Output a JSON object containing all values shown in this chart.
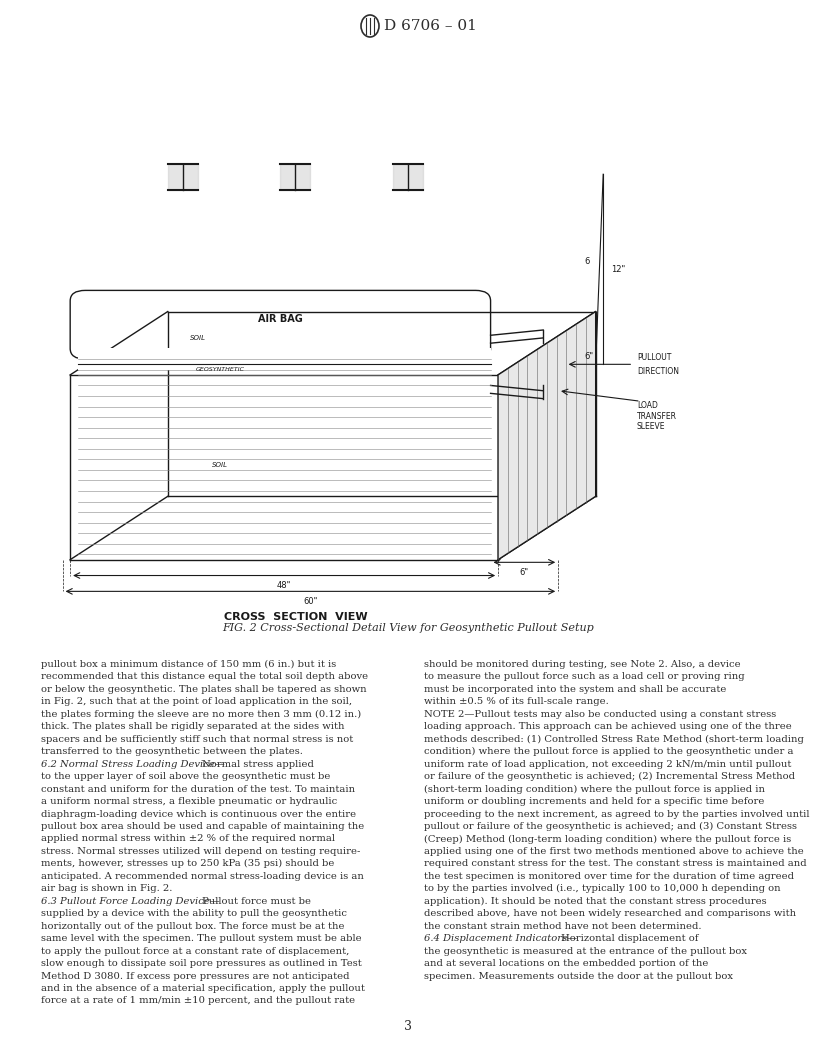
{
  "page_title": "D 6706 – 01",
  "fig_caption": "FIG. 2 Cross-Sectional Detail View for Geosynthetic Pullout Setup",
  "fig_subtitle": "CROSS SECTION VIEW",
  "page_number": "3",
  "bg_color": "#ffffff",
  "text_color": "#2d2d2d",
  "body_text_left": [
    "pullout box a minimum distance of 150 mm (6 in.) but it is",
    "recommended that this distance equal the total soil depth above",
    "or below the geosynthetic. The plates shall be tapered as shown",
    "in Fig. 2, such that at the point of load application in the soil,",
    "the plates forming the sleeve are no more then 3 mm (0.12 in.)",
    "thick. The plates shall be rigidly separated at the sides with",
    "spacers and be sufficiently stiff such that normal stress is not",
    "transferred to the geosynthetic between the plates.",
    "6.2 Normal Stress Loading Device—Normal stress applied",
    "to the upper layer of soil above the geosynthetic must be",
    "constant and uniform for the duration of the test. To maintain",
    "a uniform normal stress, a flexible pneumatic or hydraulic",
    "diaphragm-loading device which is continuous over the entire",
    "pullout box area should be used and capable of maintaining the",
    "applied normal stress within ±2 % of the required normal",
    "stress. Normal stresses utilized will depend on testing require-",
    "ments, however, stresses up to 250 kPa (35 psi) should be",
    "anticipated. A recommended normal stress-loading device is an",
    "air bag is shown in Fig. 2.",
    "6.3 Pullout Force Loading Device—Pullout force must be",
    "supplied by a device with the ability to pull the geosynthetic",
    "horizontally out of the pullout box. The force must be at the",
    "same level with the specimen. The pullout system must be able",
    "to apply the pullout force at a constant rate of displacement,",
    "slow enough to dissipate soil pore pressures as outlined in Test",
    "Method D 3080. If excess pore pressures are not anticipated",
    "and in the absence of a material specification, apply the pullout",
    "force at a rate of 1 mm/min ±10 percent, and the pullout rate"
  ],
  "body_text_right": [
    "should be monitored during testing, see Note 2. Also, a device",
    "to measure the pullout force such as a load cell or proving ring",
    "must be incorporated into the system and shall be accurate",
    "within ±0.5 % of its full-scale range.",
    "NOTE 2—Pullout tests may also be conducted using a constant stress",
    "loading approach. This approach can be achieved using one of the three",
    "methods described: (1) Controlled Stress Rate Method (short-term loading",
    "condition) where the pullout force is applied to the geosynthetic under a",
    "uniform rate of load application, not exceeding 2 kN/m/min until pullout",
    "or failure of the geosynthetic is achieved; (2) Incremental Stress Method",
    "(short-term loading condition) where the pullout force is applied in",
    "uniform or doubling increments and held for a specific time before",
    "proceeding to the next increment, as agreed to by the parties involved until",
    "pullout or failure of the geosynthetic is achieved; and (3) Constant Stress",
    "(Creep) Method (long-term loading condition) where the pullout force is",
    "applied using one of the first two methods mentioned above to achieve the",
    "required constant stress for the test. The constant stress is maintained and",
    "the test specimen is monitored over time for the duration of time agreed",
    "to by the parties involved (i.e., typically 100 to 10,000 h depending on",
    "application). It should be noted that the constant stress procedures",
    "described above, have not been widely researched and comparisons with",
    "the constant strain method have not been determined.",
    "6.4 Displacement Indicators—Horizontal displacement of",
    "the geosynthetic is measured at the entrance of the pullout box",
    "and at several locations on the embedded portion of the",
    "specimen. Measurements outside the door at the pullout box"
  ]
}
